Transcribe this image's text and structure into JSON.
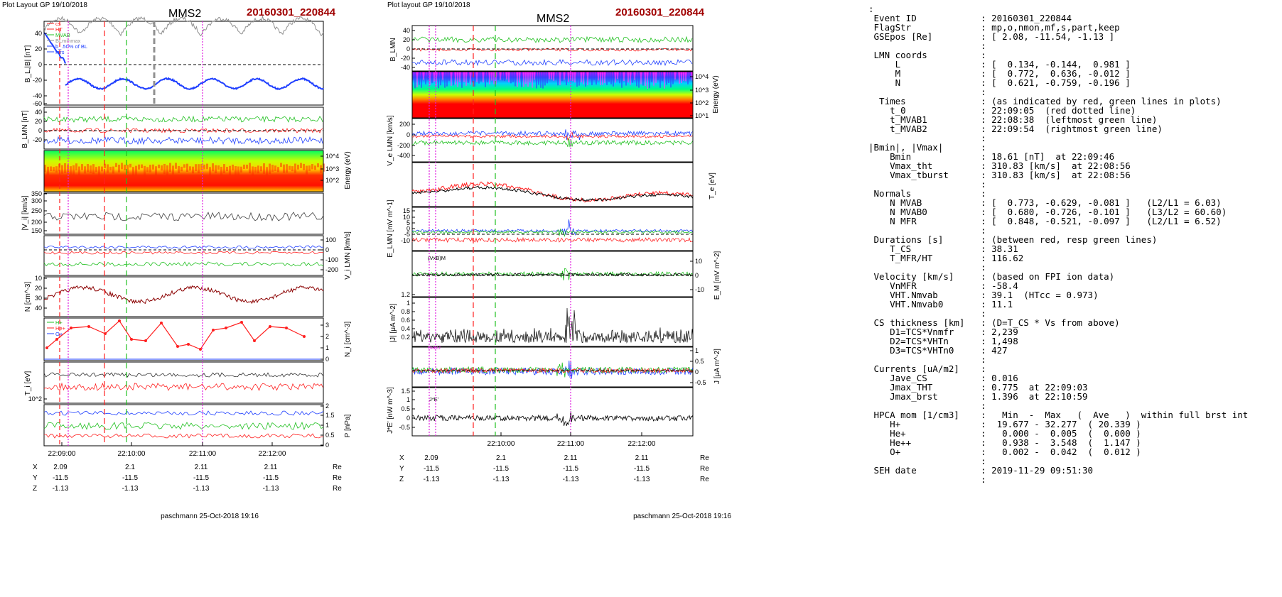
{
  "left_panel": {
    "header": "Plot Layout GP 19/10/2018",
    "spacecraft": "MMS2",
    "event": "20160301_220844",
    "footer": "paschmann 25-Oct-2018 19:16",
    "time_ticks": [
      "22:09:00",
      "22:10:00",
      "22:11:00",
      "22:12:00"
    ],
    "pos_labels": [
      "X",
      "Y",
      "Z"
    ],
    "pos_values": [
      [
        "2.09",
        "2.1",
        "2.11",
        "2.11"
      ],
      [
        "-11.5",
        "-11.5",
        "-11.5",
        "-11.5"
      ],
      [
        "-1.13",
        "-1.13",
        "-1.13",
        "-1.13"
      ]
    ],
    "pos_unit": "Re"
  },
  "right_panel": {
    "header": "Plot layout GP 19/10/2018",
    "spacecraft": "MMS2",
    "event": "20160301_220844",
    "footer": "paschmann 25-Oct-2018 19:16",
    "time_ticks": [
      "22:10:00",
      "22:11:00",
      "22:12:00"
    ],
    "pos_labels": [
      "X",
      "Y",
      "Z"
    ],
    "pos_values": [
      [
        "2.09",
        "2.1",
        "2.11",
        "2.11"
      ],
      [
        "-11.5",
        "-11.5",
        "-11.5",
        "-11.5"
      ],
      [
        "-1.13",
        "-1.13",
        "-1.13",
        "-1.13"
      ]
    ],
    "pos_unit": "Re"
  },
  "colors": {
    "red": "#ff2020",
    "green": "#20c020",
    "blue": "#1f3fff",
    "magenta": "#e020e0",
    "gray": "#909090",
    "title_red": "#a00000"
  },
  "chart_data": [
    {
      "type": "line",
      "title": "MMS2",
      "subtitle": "20160301_220844",
      "x_ticks": [
        "22:09:00",
        "22:10:00",
        "22:11:00",
        "22:12:00"
      ],
      "panels": [
        {
          "ylabel": "B_L,|B| [nT]",
          "ylim": [
            -60,
            50
          ],
          "yticks": [
            -60,
            -40,
            -20,
            0,
            20,
            40
          ],
          "legend": [
            "cs",
            "HT",
            "MVAB",
            "BLminmax",
            "b_.50% of BL",
            "fors"
          ]
        },
        {
          "ylabel": "B_LMN [nT]",
          "yticks": [
            -20,
            0,
            20,
            40
          ],
          "legend": [
            "B",
            "S"
          ]
        },
        {
          "ylabel": "Energy (eV)",
          "type": "heatmap",
          "yticks": [
            "10^2",
            "10^3",
            "10^4"
          ]
        },
        {
          "ylabel": "|V_i| [km/s]",
          "yticks": [
            150,
            200,
            250,
            300,
            350
          ],
          "legend": [
            "Vmax",
            "cs",
            "dvmax"
          ]
        },
        {
          "ylabel": "V_i LMN [km/s]",
          "yticks": [
            100,
            0,
            -100,
            -200
          ],
          "legend": [
            "L",
            "M",
            "N"
          ]
        },
        {
          "ylabel": "N [cm^-3]",
          "yticks": [
            10,
            20,
            30,
            40
          ],
          "legend": [
            "Ne",
            "Ni"
          ]
        },
        {
          "ylabel": "N_i [cm^-3]",
          "yticks": [
            0,
            1,
            2,
            3
          ],
          "legend": [
            "H+",
            "He+",
            "O+"
          ]
        },
        {
          "ylabel": "T_i [eV]",
          "yticks": [
            "10^2"
          ]
        },
        {
          "ylabel": "P [nPa]",
          "yticks": [
            0.0,
            0.5,
            1.0,
            1.5,
            2.0
          ]
        }
      ]
    },
    {
      "type": "line",
      "title": "MMS2",
      "subtitle": "20160301_220844",
      "x_ticks": [
        "22:10:00",
        "22:11:00",
        "22:12:00"
      ],
      "panels": [
        {
          "ylabel": "B_LMN",
          "yticks": [
            -40,
            -20,
            0,
            20,
            40
          ]
        },
        {
          "ylabel": "Energy (eV)",
          "type": "heatmap",
          "yticks": [
            "10^1",
            "10^2",
            "10^3",
            "10^4"
          ]
        },
        {
          "ylabel": "V_e LMN [km/s]",
          "yticks": [
            200,
            0,
            -200,
            -400
          ]
        },
        {
          "ylabel": "T_e [eV]"
        },
        {
          "ylabel": "E_LMN [mV m^-1]",
          "yticks": [
            15,
            10,
            5,
            0,
            -5,
            -10
          ]
        },
        {
          "ylabel": "E_M [mV m^-2]",
          "yticks": [
            10,
            0,
            -10
          ],
          "legend": [
            "(VxB)M"
          ]
        },
        {
          "ylabel": "|J| [μA m^-2]",
          "yticks": [
            0.2,
            0.4,
            0.6,
            0.8,
            1.0,
            1.2
          ]
        },
        {
          "ylabel": "J [μA m^-2]",
          "yticks": [
            1.0,
            0.5,
            0.0,
            -0.5
          ],
          "legend": [
            "maxJ"
          ]
        },
        {
          "ylabel": "J*E' [nW m^-3]",
          "yticks": [
            1.5,
            1.0,
            0.5,
            0.0,
            -0.5
          ],
          "legend": [
            "J*E'"
          ]
        }
      ]
    }
  ],
  "info": {
    "lines": [
      ":",
      " Event ID            : 20160301_220844",
      " FlagStr             : mp,o,nmon,mf,s,part,keep",
      " GSEpos [Re]         : [ 2.08, -11.54, -1.13 ]",
      "                     :",
      " LMN coords          :",
      "     L               : [  0.134, -0.144,  0.981 ]",
      "     M               : [  0.772,  0.636, -0.012 ]",
      "     N               : [  0.621, -0.759, -0.196 ]",
      "                     :",
      "  Times              : (as indicated by red, green lines in plots)",
      "    t_0              : 22:09:05  (red dotted line)",
      "    t_MVAB1          : 22:08:38  (leftmost green line)",
      "    t_MVAB2          : 22:09:54  (rightmost green line)",
      "                     :",
      "|Bmin|, |Vmax|       :",
      "    Bmin             : 18.61 [nT]  at 22:09:46",
      "    Vmax_tht         : 310.83 [km/s]  at 22:08:56",
      "    Vmax_tburst      : 310.83 [km/s]  at 22:08:56",
      "                     :",
      " Normals             :",
      "    N MVAB           : [  0.773, -0.629, -0.081 ]   (L2/L1 = 6.03)",
      "    N MVAB0          : [  0.680, -0.726, -0.101 ]   (L3/L2 = 60.60)",
      "    N MFR            : [  0.848, -0.521, -0.097 ]   (L2/L1 = 6.52)",
      "                     :",
      " Durations [s]       : (between red, resp green lines)",
      "    T_CS             : 38.31",
      "    T_MFR/HT         : 116.62",
      "                     :",
      " Velocity [km/s]     : (based on FPI ion data)",
      "    VnMFR            : -58.4",
      "    VHT.Nmvab        : 39.1  (HTcc = 0.973)",
      "    VHT.Nmvab0       : 11.1",
      "                     :",
      " CS thickness [km]   : (D=T_CS * Vs from above)",
      "    D1=TCS*Vnmfr     : 2,239",
      "    D2=TCS*VHTn      : 1,498",
      "    D3=TCS*VHTn0     : 427",
      "                     :",
      " Currents [uA/m2]    :",
      "    Jave_CS          : 0.016",
      "    Jmax_THT         : 0.775  at 22:09:03",
      "    Jmax_brst        : 1.396  at 22:10:59",
      "                     :",
      " HPCA mom [1/cm3]    :   Min  -  Max   (  Ave   )  within full brst int",
      "    H+               :  19.677 - 32.277  ( 20.339 )",
      "    He+              :   0.000 -  0.005  (  0.000 )",
      "    He++             :   0.938 -  3.548  (  1.147 )",
      "    O+               :   0.002 -  0.042  (  0.012 )",
      "                     :",
      " SEH date            : 2019-11-29 09:51:30",
      "                     :"
    ]
  }
}
